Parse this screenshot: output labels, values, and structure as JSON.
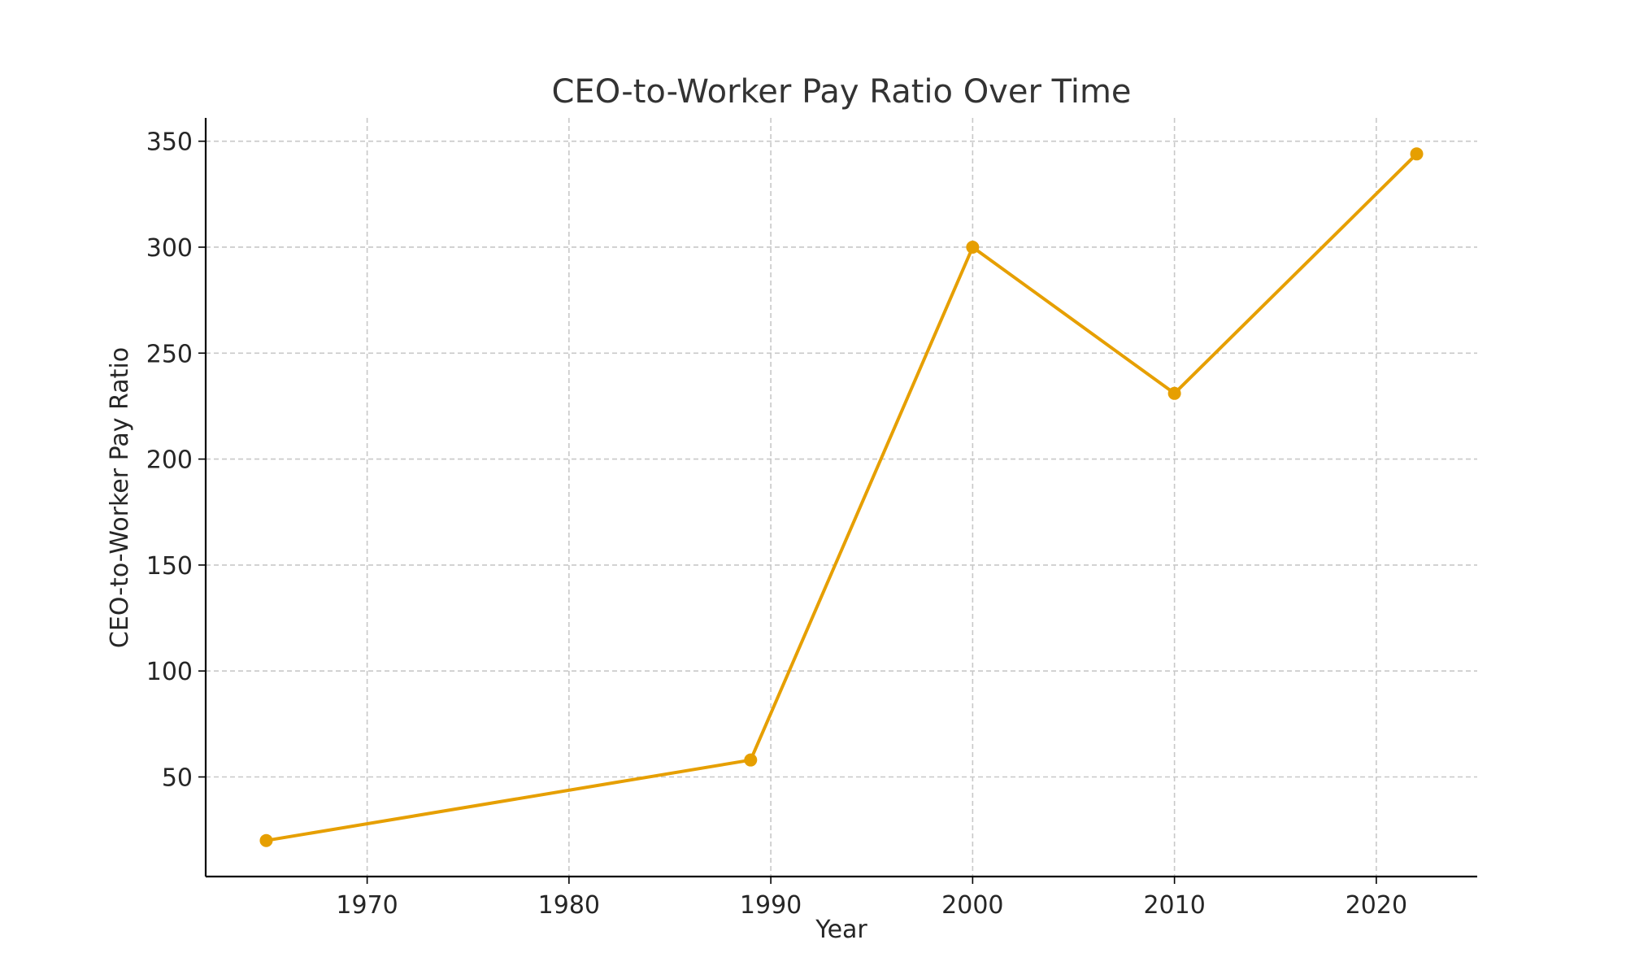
{
  "chart_data": {
    "type": "line",
    "title": "CEO-to-Worker Pay Ratio Over Time",
    "xlabel": "Year",
    "ylabel": "CEO-to-Worker Pay Ratio",
    "x": [
      1965,
      1989,
      2000,
      2010,
      2022
    ],
    "series": [
      {
        "values": [
          20,
          58,
          300,
          231,
          344
        ]
      }
    ],
    "xlim": [
      1962,
      2025
    ],
    "ylim": [
      3,
      361
    ],
    "xticks": [
      1970,
      1980,
      1990,
      2000,
      2010,
      2020
    ],
    "xtick_labels": [
      "1970",
      "1980",
      "1990",
      "2000",
      "2010",
      "2020"
    ],
    "yticks": [
      50,
      100,
      150,
      200,
      250,
      300,
      350
    ],
    "ytick_labels": [
      "50",
      "100",
      "150",
      "200",
      "250",
      "300",
      "350"
    ],
    "grid": true,
    "grid_style": "dashed",
    "marker": "circle",
    "colors": {
      "line": "#E69F00",
      "axis": "#000000",
      "grid": "#C8C8C8",
      "text": "#262626",
      "title": "#333333"
    }
  }
}
